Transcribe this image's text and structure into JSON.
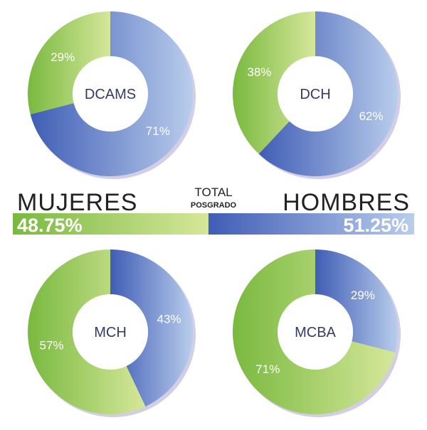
{
  "chart_data": [
    {
      "type": "pie",
      "center_label": "DCAMS",
      "slices": [
        {
          "name": "HOMBRES",
          "value": 71,
          "label": "71%"
        },
        {
          "name": "MUJERES",
          "value": 29,
          "label": "29%"
        }
      ]
    },
    {
      "type": "pie",
      "center_label": "DCH",
      "slices": [
        {
          "name": "HOMBRES",
          "value": 62,
          "label": "62%"
        },
        {
          "name": "MUJERES",
          "value": 38,
          "label": "38%"
        }
      ]
    },
    {
      "type": "pie",
      "center_label": "MCH",
      "slices": [
        {
          "name": "HOMBRES",
          "value": 43,
          "label": "43%"
        },
        {
          "name": "MUJERES",
          "value": 57,
          "label": "57%"
        }
      ]
    },
    {
      "type": "pie",
      "center_label": "MCBA",
      "slices": [
        {
          "name": "HOMBRES",
          "value": 29,
          "label": "29%"
        },
        {
          "name": "MUJERES",
          "value": 71,
          "label": "71%"
        }
      ]
    }
  ],
  "total_bar": {
    "title": "TOTAL",
    "subtitle": "POSGRADO",
    "left_label": "MUJERES",
    "right_label": "HOMBRES",
    "left_value": 48.75,
    "right_value": 51.25,
    "left_value_label": "48.75%",
    "right_value_label": "51.25%"
  },
  "colors": {
    "hombres_dark": "#3f5db5",
    "hombres_light": "#b9cdec",
    "mujeres_dark": "#79b93f",
    "mujeres_light": "#d6e79a",
    "shadow": "#d3cde6",
    "text_dark": "#222222",
    "text_label": "#333a66",
    "text_white": "#ffffff"
  }
}
